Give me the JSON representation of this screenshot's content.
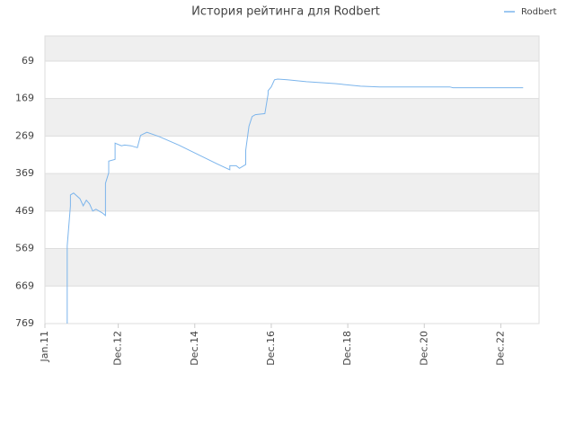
{
  "chart_data": {
    "type": "line",
    "title": "История рейтинга для Rodbert",
    "x": [
      "2011-08",
      "2011-08",
      "2011-09",
      "2011-09",
      "2011-10",
      "2011-12",
      "2012-01",
      "2012-02",
      "2012-03",
      "2012-04",
      "2012-05",
      "2012-07",
      "2012-08",
      "2012-08",
      "2012-09",
      "2012-09",
      "2012-11",
      "2012-11",
      "2013-01",
      "2013-02",
      "2013-04",
      "2013-06",
      "2013-07",
      "2013-09",
      "2014-01",
      "2014-07",
      "2015-07",
      "2015-11",
      "2015-11",
      "2016-01",
      "2016-02",
      "2016-04",
      "2016-04",
      "2016-05",
      "2016-06",
      "2016-07",
      "2016-10",
      "2016-11",
      "2016-11",
      "2016-12",
      "2017-01",
      "2017-02",
      "2017-05",
      "2017-11",
      "2018-08",
      "2019-04",
      "2019-10",
      "2021-08",
      "2021-09",
      "2023-07"
    ],
    "series": [
      {
        "name": "Rodbert",
        "color": "#7cb5ec",
        "values": [
          769,
          562,
          455,
          426,
          421,
          436,
          455,
          440,
          450,
          469,
          464,
          474,
          481,
          395,
          367,
          336,
          331,
          288,
          295,
          293,
          295,
          300,
          267,
          259,
          271,
          293,
          343,
          359,
          348,
          348,
          355,
          345,
          307,
          243,
          217,
          212,
          209,
          157,
          148,
          138,
          119,
          117,
          119,
          124,
          129,
          136,
          138,
          138,
          140,
          140
        ]
      }
    ],
    "xlim": [
      "2011-01",
      "2023-12"
    ],
    "xticks": [
      {
        "value": "2011-01",
        "label": "Jan.11"
      },
      {
        "value": "2012-12",
        "label": "Dec.12"
      },
      {
        "value": "2014-12",
        "label": "Dec.14"
      },
      {
        "value": "2016-12",
        "label": "Dec.16"
      },
      {
        "value": "2018-12",
        "label": "Dec.18"
      },
      {
        "value": "2020-12",
        "label": "Dec.20"
      },
      {
        "value": "2022-12",
        "label": "Dec.22"
      }
    ],
    "ylim": [
      769,
      2
    ],
    "yticks": [
      69,
      169,
      269,
      369,
      469,
      569,
      669,
      769
    ],
    "grid": true,
    "legend": "top-right"
  }
}
